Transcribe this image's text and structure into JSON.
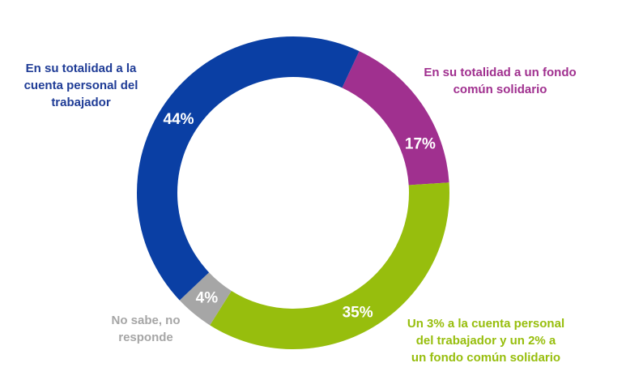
{
  "chart_data": {
    "type": "pie",
    "variant": "donut",
    "title": "",
    "start_angle_deg_clockwise_from_top": 25,
    "slices": [
      {
        "label": "En su totalidad a un fondo común solidario",
        "value": 17,
        "value_label": "17%",
        "color": "#A0308F"
      },
      {
        "label": "Un 3% a la cuenta personal del trabajador y un 2% a un fondo común solidario",
        "value": 35,
        "value_label": "35%",
        "color": "#97BE0D"
      },
      {
        "label": "No sabe, no responde",
        "value": 4,
        "value_label": "4%",
        "color": "#A6A6A6"
      },
      {
        "label": "En su totalidad a la cuenta personal del trabajador",
        "value": 44,
        "value_label": "44%",
        "color": "#0A3FA4"
      }
    ],
    "label_lines": [
      [
        "En su totalidad a un fondo",
        "común solidario"
      ],
      [
        "Un 3% a la cuenta personal",
        "del trabajador y un 2% a",
        "un fondo común solidario"
      ],
      [
        "No sabe, no",
        "responde"
      ],
      [
        "En su totalidad a la",
        "cuenta personal del",
        "trabajador"
      ]
    ],
    "label_colors": [
      "#A0308F",
      "#97BE0D",
      "#A6A6A6",
      "#1F3C96"
    ],
    "legend": "none (direct labels)"
  }
}
